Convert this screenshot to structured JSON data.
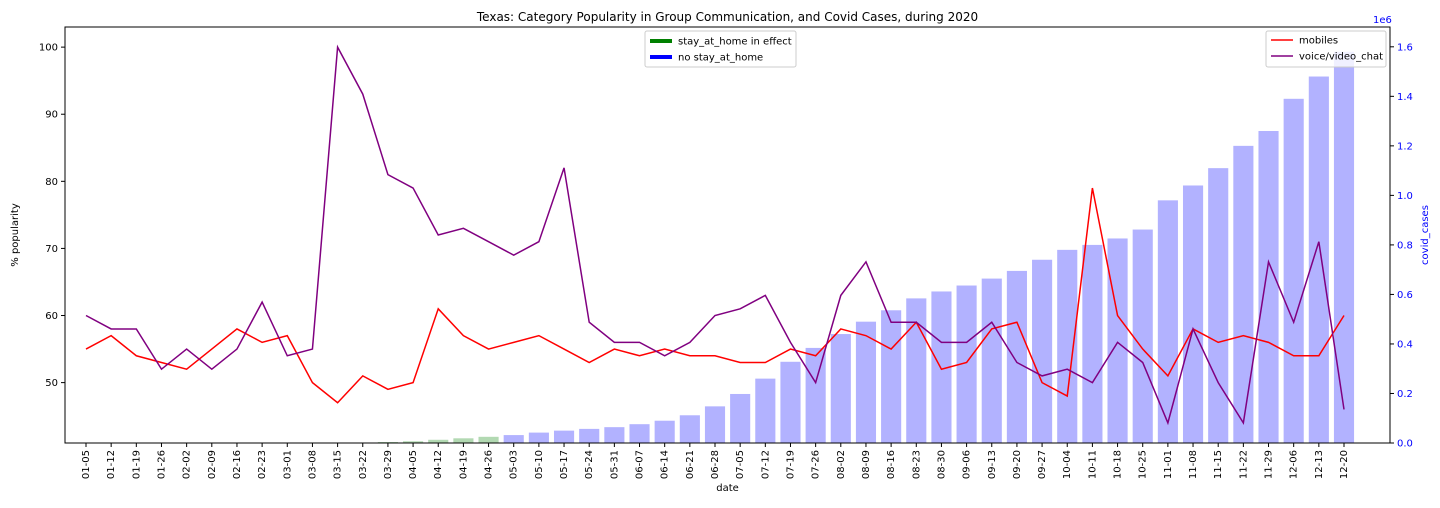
{
  "chart_data": {
    "type": "bar+line",
    "title": "Texas: Category Popularity in Group Communication, and Covid Cases, during 2020",
    "xlabel": "date",
    "ylabel": "% popularity",
    "y2label": "covid_cases",
    "y2_offset_label": "1e6",
    "ylim": [
      41,
      103
    ],
    "y2lim": [
      0,
      1.68
    ],
    "yticks": [
      50,
      60,
      70,
      80,
      90,
      100
    ],
    "y2ticks": [
      "0.0",
      "0.2",
      "0.4",
      "0.6",
      "0.8",
      "1.0",
      "1.2",
      "1.4",
      "1.6"
    ],
    "grid": false,
    "categories": [
      "01-05",
      "01-12",
      "01-19",
      "01-26",
      "02-02",
      "02-09",
      "02-16",
      "02-23",
      "03-01",
      "03-08",
      "03-15",
      "03-22",
      "03-29",
      "04-05",
      "04-12",
      "04-19",
      "04-26",
      "05-03",
      "05-10",
      "05-17",
      "05-24",
      "05-31",
      "06-07",
      "06-14",
      "06-21",
      "06-28",
      "07-05",
      "07-12",
      "07-19",
      "07-26",
      "08-02",
      "08-09",
      "08-16",
      "08-23",
      "08-30",
      "09-06",
      "09-13",
      "09-20",
      "09-27",
      "10-04",
      "10-11",
      "10-18",
      "10-25",
      "11-01",
      "11-08",
      "11-15",
      "11-22",
      "11-29",
      "12-06",
      "12-13",
      "12-20"
    ],
    "series": [
      {
        "name": "mobiles",
        "type": "line",
        "axis": "left",
        "color": "#ff0000",
        "values": [
          55,
          57,
          54,
          53,
          52,
          55,
          58,
          56,
          57,
          50,
          47,
          51,
          49,
          50,
          61,
          57,
          55,
          56,
          57,
          55,
          53,
          55,
          54,
          55,
          54,
          54,
          53,
          53,
          55,
          54,
          58,
          57,
          55,
          59,
          52,
          53,
          58,
          59,
          50,
          48,
          79,
          60,
          55,
          51,
          58,
          56,
          57,
          56,
          54,
          54,
          60
        ]
      },
      {
        "name": "voice/video_chat",
        "type": "line",
        "axis": "left",
        "color": "#800080",
        "values": [
          60,
          58,
          58,
          52,
          55,
          52,
          55,
          62,
          54,
          55,
          100,
          93,
          81,
          79,
          72,
          73,
          71,
          69,
          71,
          82,
          59,
          56,
          56,
          54,
          56,
          60,
          61,
          63,
          56,
          50,
          63,
          68,
          59,
          59,
          56,
          56,
          59,
          53,
          51,
          52,
          50,
          56,
          53,
          44,
          58,
          50,
          44,
          68,
          59,
          71,
          46
        ]
      },
      {
        "name": "covid_cases",
        "type": "bar",
        "axis": "right",
        "values": [
          0,
          0,
          0,
          0,
          0,
          0,
          0,
          0,
          0,
          0,
          0.0002,
          0.0015,
          0.004,
          0.007,
          0.013,
          0.019,
          0.025,
          0.032,
          0.042,
          0.05,
          0.057,
          0.064,
          0.076,
          0.09,
          0.112,
          0.148,
          0.198,
          0.26,
          0.328,
          0.384,
          0.44,
          0.49,
          0.536,
          0.584,
          0.612,
          0.636,
          0.664,
          0.695,
          0.74,
          0.78,
          0.8,
          0.826,
          0.862,
          0.98,
          1.04,
          1.11,
          1.2,
          1.26,
          1.39,
          1.48,
          1.58
        ],
        "colors": [
          "#0000ff",
          "#0000ff",
          "#0000ff",
          "#0000ff",
          "#0000ff",
          "#0000ff",
          "#0000ff",
          "#0000ff",
          "#0000ff",
          "#0000ff",
          "#0000ff",
          "#0000ff",
          "#008000",
          "#008000",
          "#008000",
          "#008000",
          "#008000",
          "#0000ff",
          "#0000ff",
          "#0000ff",
          "#0000ff",
          "#0000ff",
          "#0000ff",
          "#0000ff",
          "#0000ff",
          "#0000ff",
          "#0000ff",
          "#0000ff",
          "#0000ff",
          "#0000ff",
          "#0000ff",
          "#0000ff",
          "#0000ff",
          "#0000ff",
          "#0000ff",
          "#0000ff",
          "#0000ff",
          "#0000ff",
          "#0000ff",
          "#0000ff",
          "#0000ff",
          "#0000ff",
          "#0000ff",
          "#0000ff",
          "#0000ff",
          "#0000ff",
          "#0000ff",
          "#0000ff",
          "#0000ff",
          "#0000ff",
          "#0000ff"
        ]
      }
    ],
    "legend_top_center": {
      "placement": "upper-center",
      "items": [
        {
          "label": "stay_at_home in effect",
          "color": "#008000"
        },
        {
          "label": "no stay_at_home",
          "color": "#0000ff"
        }
      ]
    },
    "legend_top_right": {
      "placement": "upper-right",
      "items": [
        {
          "label": "mobiles",
          "color": "#ff0000"
        },
        {
          "label": "voice/video_chat",
          "color": "#800080"
        }
      ]
    }
  }
}
